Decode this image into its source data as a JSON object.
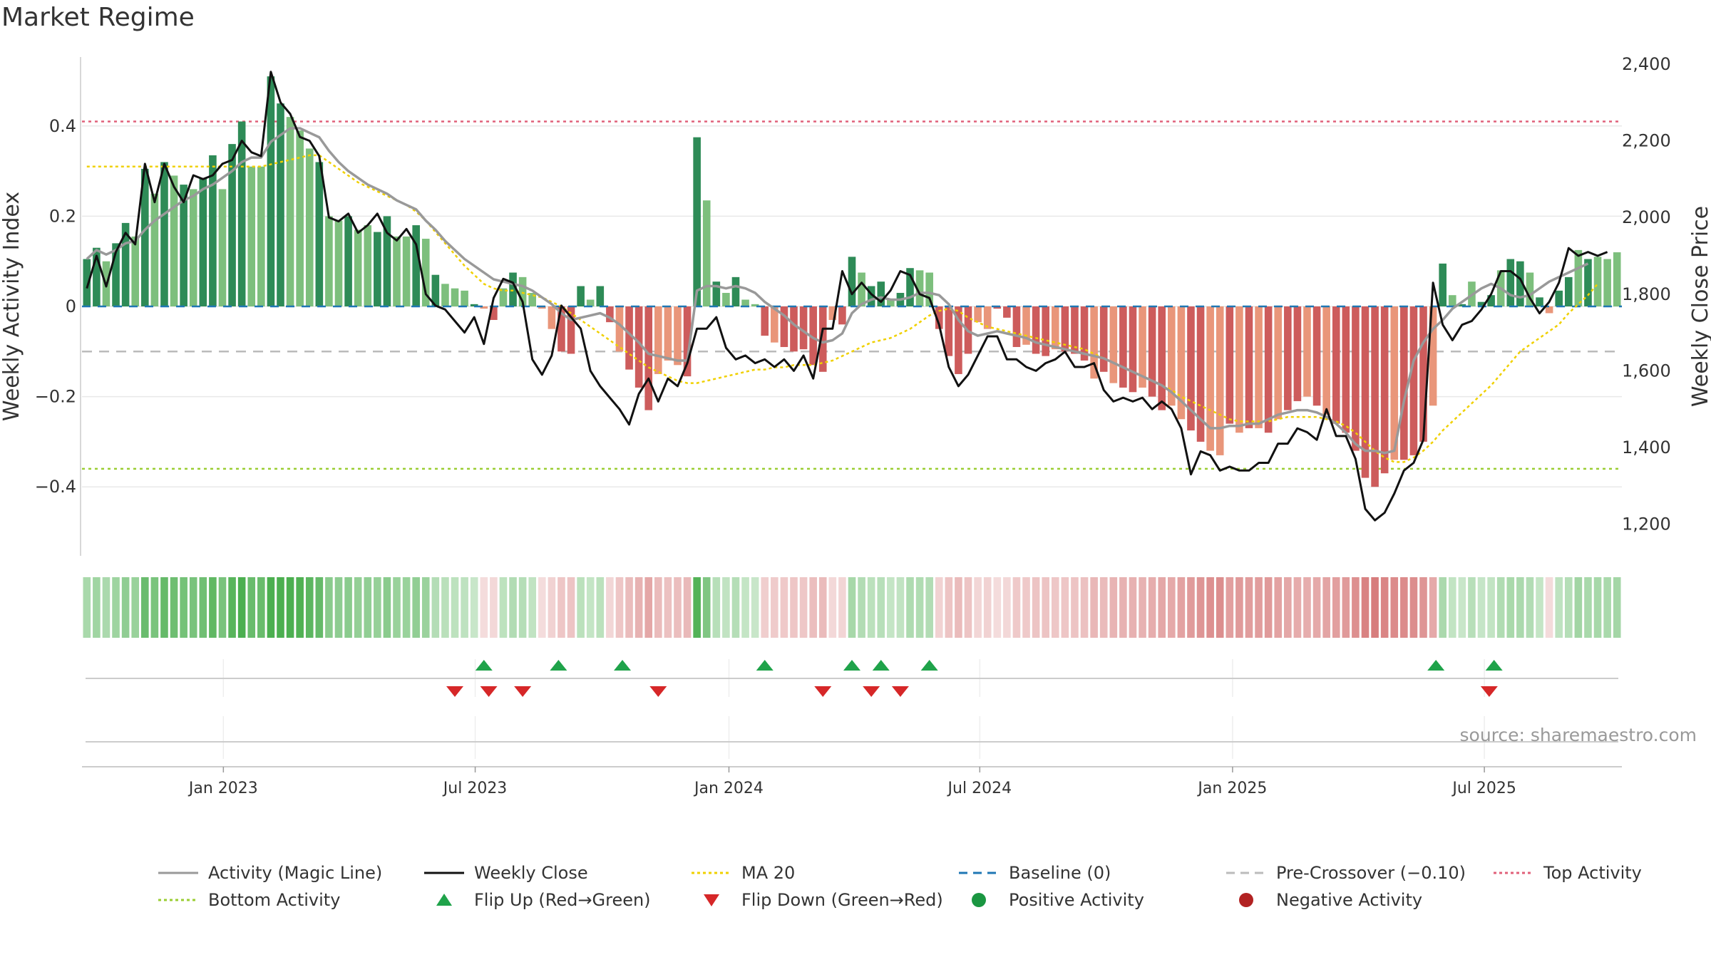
{
  "title": "Market Regime",
  "source": "source: sharemaestro.com",
  "colors": {
    "bar_pos_dark": "#2e8b57",
    "bar_pos_light": "#7dbf7d",
    "bar_neg_dark": "#cd5c5c",
    "bar_neg_light": "#e9967a",
    "magic_line": "#999999",
    "weekly_close": "#111111",
    "ma20": "#f0d000",
    "baseline": "#1f77b4",
    "precross": "#bbbbbb",
    "top_activity": "#e0607a",
    "bottom_activity": "#9acd32",
    "flip_up": "#1fa34a",
    "flip_down": "#d62728",
    "pos_dot": "#1a9641",
    "neg_dot": "#b22222",
    "grid": "#e8e8e8"
  },
  "chart_data": {
    "type": "bar",
    "title": "Market Regime",
    "ylabel": "Weekly Activity Index",
    "y2label": "Weekly Close Price",
    "ylim": [
      -0.55,
      0.55
    ],
    "y2lim": [
      1130,
      2400
    ],
    "yticks": [
      {
        "value": 0.4,
        "label": "0.4"
      },
      {
        "value": 0.2,
        "label": "0.2"
      },
      {
        "value": 0,
        "label": "0"
      },
      {
        "value": -0.2,
        "label": "−0.2"
      },
      {
        "value": -0.4,
        "label": "−0.4"
      }
    ],
    "y2ticks": [
      {
        "value": 2400,
        "label": "2,400"
      },
      {
        "value": 2200,
        "label": "2,200"
      },
      {
        "value": 2000,
        "label": "2,000"
      },
      {
        "value": 1800,
        "label": "1,800"
      },
      {
        "value": 1600,
        "label": "1,600"
      },
      {
        "value": 1400,
        "label": "1,400"
      },
      {
        "value": 1200,
        "label": "1,200"
      }
    ],
    "xticks": [
      "Jan 2023",
      "Jul 2023",
      "Jan 2024",
      "Jul 2024",
      "Jan 2025",
      "Jul 2025"
    ],
    "xtick_weeks": [
      14.6,
      40.6,
      66.8,
      92.7,
      118.8,
      144.8
    ],
    "top_activity": 0.41,
    "bottom_activity": -0.36,
    "baseline": 0,
    "pre_crossover": -0.1,
    "activity": [
      0.105,
      0.13,
      0.1,
      0.14,
      0.185,
      0.155,
      0.305,
      0.25,
      0.32,
      0.29,
      0.27,
      0.26,
      0.285,
      0.335,
      0.26,
      0.36,
      0.41,
      0.31,
      0.31,
      0.51,
      0.45,
      0.42,
      0.39,
      0.35,
      0.32,
      0.2,
      0.19,
      0.2,
      0.17,
      0.18,
      0.165,
      0.2,
      0.155,
      0.155,
      0.18,
      0.15,
      0.07,
      0.05,
      0.04,
      0.035,
      0.005,
      -0.005,
      -0.03,
      0.04,
      0.075,
      0.065,
      0.03,
      -0.005,
      -0.05,
      -0.1,
      -0.105,
      0.045,
      0.015,
      0.045,
      -0.035,
      -0.1,
      -0.14,
      -0.18,
      -0.23,
      -0.15,
      -0.12,
      -0.13,
      -0.155,
      0.375,
      0.235,
      0.055,
      0.03,
      0.065,
      0.015,
      0.005,
      -0.065,
      -0.08,
      -0.09,
      -0.1,
      -0.095,
      -0.13,
      -0.145,
      -0.03,
      -0.04,
      0.11,
      0.075,
      0.045,
      0.055,
      0.015,
      0.03,
      0.085,
      0.08,
      0.075,
      -0.05,
      -0.11,
      -0.15,
      -0.105,
      -0.035,
      -0.05,
      -0.005,
      -0.025,
      -0.09,
      -0.085,
      -0.105,
      -0.11,
      -0.095,
      -0.1,
      -0.105,
      -0.12,
      -0.16,
      -0.145,
      -0.17,
      -0.18,
      -0.19,
      -0.18,
      -0.2,
      -0.23,
      -0.22,
      -0.25,
      -0.275,
      -0.3,
      -0.32,
      -0.33,
      -0.26,
      -0.28,
      -0.27,
      -0.27,
      -0.28,
      -0.25,
      -0.23,
      -0.21,
      -0.2,
      -0.22,
      -0.24,
      -0.26,
      -0.28,
      -0.32,
      -0.38,
      -0.4,
      -0.37,
      -0.34,
      -0.34,
      -0.33,
      -0.3,
      -0.22,
      0.095,
      0.025,
      0.005,
      0.055,
      0.01,
      0.025,
      0.08,
      0.105,
      0.1,
      0.075,
      0.02,
      -0.015,
      0.035,
      0.065,
      0.125,
      0.105,
      0.11,
      0.105,
      0.12
    ],
    "bar_shade": [
      1,
      1,
      0,
      1,
      1,
      0,
      1,
      0,
      1,
      0,
      1,
      0,
      1,
      1,
      0,
      1,
      1,
      0,
      0,
      1,
      1,
      0,
      0,
      0,
      1,
      0,
      0,
      1,
      0,
      0,
      1,
      1,
      0,
      0,
      1,
      0,
      1,
      0,
      0,
      0,
      1,
      0,
      1,
      0,
      1,
      0,
      0,
      0,
      0,
      1,
      1,
      1,
      0,
      1,
      1,
      0,
      1,
      1,
      1,
      0,
      0,
      0,
      1,
      1,
      0,
      1,
      0,
      1,
      0,
      0,
      1,
      0,
      1,
      1,
      1,
      1,
      1,
      0,
      1,
      1,
      0,
      1,
      1,
      0,
      1,
      1,
      0,
      0,
      1,
      1,
      1,
      1,
      0,
      0,
      1,
      1,
      1,
      0,
      1,
      1,
      0,
      1,
      1,
      1,
      0,
      1,
      0,
      1,
      1,
      0,
      1,
      1,
      0,
      0,
      1,
      1,
      0,
      0,
      1,
      0,
      1,
      0,
      1,
      0,
      1,
      1,
      0,
      1,
      0,
      1,
      1,
      1,
      1,
      1,
      1,
      0,
      1,
      1,
      1,
      0,
      1,
      0,
      1,
      0,
      1,
      1,
      0,
      1,
      1,
      0,
      1,
      0,
      1,
      1,
      0,
      1,
      0
    ],
    "weekly_close": [
      1815,
      1900,
      1820,
      1910,
      1960,
      1930,
      2140,
      2040,
      2140,
      2080,
      2040,
      2110,
      2100,
      2110,
      2140,
      2150,
      2200,
      2170,
      2160,
      2380,
      2300,
      2270,
      2210,
      2200,
      2160,
      2000,
      1990,
      2010,
      1960,
      1980,
      2010,
      1960,
      1940,
      1970,
      1930,
      1800,
      1770,
      1760,
      1730,
      1700,
      1740,
      1670,
      1790,
      1840,
      1830,
      1780,
      1630,
      1590,
      1640,
      1770,
      1740,
      1710,
      1600,
      1560,
      1530,
      1500,
      1460,
      1540,
      1580,
      1520,
      1580,
      1560,
      1620,
      1710,
      1710,
      1740,
      1660,
      1630,
      1640,
      1620,
      1630,
      1610,
      1630,
      1600,
      1640,
      1580,
      1710,
      1710,
      1860,
      1800,
      1830,
      1800,
      1780,
      1810,
      1860,
      1850,
      1800,
      1790,
      1720,
      1610,
      1560,
      1590,
      1640,
      1690,
      1690,
      1630,
      1630,
      1610,
      1600,
      1620,
      1630,
      1650,
      1610,
      1610,
      1620,
      1550,
      1520,
      1530,
      1520,
      1530,
      1500,
      1520,
      1500,
      1450,
      1330,
      1390,
      1380,
      1340,
      1350,
      1340,
      1340,
      1360,
      1360,
      1410,
      1410,
      1450,
      1440,
      1420,
      1500,
      1430,
      1430,
      1370,
      1240,
      1210,
      1230,
      1280,
      1340,
      1360,
      1420,
      1830,
      1720,
      1680,
      1720,
      1730,
      1760,
      1800,
      1860,
      1860,
      1840,
      1790,
      1750,
      1780,
      1830,
      1920,
      1900,
      1910,
      1900,
      1910
    ],
    "magic_line": [
      0.105,
      0.125,
      0.115,
      0.125,
      0.14,
      0.145,
      0.17,
      0.19,
      0.205,
      0.22,
      0.235,
      0.245,
      0.26,
      0.27,
      0.285,
      0.3,
      0.32,
      0.33,
      0.33,
      0.365,
      0.38,
      0.395,
      0.395,
      0.385,
      0.375,
      0.345,
      0.32,
      0.3,
      0.285,
      0.27,
      0.26,
      0.25,
      0.235,
      0.225,
      0.215,
      0.19,
      0.17,
      0.145,
      0.125,
      0.105,
      0.09,
      0.075,
      0.06,
      0.055,
      0.05,
      0.045,
      0.035,
      0.02,
      0.005,
      -0.015,
      -0.03,
      -0.025,
      -0.02,
      -0.015,
      -0.025,
      -0.04,
      -0.06,
      -0.08,
      -0.105,
      -0.11,
      -0.115,
      -0.12,
      -0.12,
      0.035,
      0.045,
      0.045,
      0.04,
      0.045,
      0.04,
      0.03,
      0.01,
      -0.005,
      -0.02,
      -0.04,
      -0.055,
      -0.07,
      -0.08,
      -0.075,
      -0.06,
      -0.015,
      0.005,
      0.015,
      0.02,
      0.015,
      0.015,
      0.02,
      0.03,
      0.03,
      0.025,
      0.005,
      -0.03,
      -0.055,
      -0.065,
      -0.06,
      -0.055,
      -0.06,
      -0.065,
      -0.07,
      -0.08,
      -0.085,
      -0.09,
      -0.095,
      -0.1,
      -0.105,
      -0.11,
      -0.115,
      -0.125,
      -0.135,
      -0.145,
      -0.155,
      -0.165,
      -0.175,
      -0.19,
      -0.21,
      -0.23,
      -0.25,
      -0.27,
      -0.27,
      -0.265,
      -0.265,
      -0.26,
      -0.26,
      -0.25,
      -0.24,
      -0.235,
      -0.23,
      -0.23,
      -0.235,
      -0.245,
      -0.26,
      -0.28,
      -0.305,
      -0.32,
      -0.32,
      -0.325,
      -0.32,
      -0.21,
      -0.12,
      -0.08,
      -0.05,
      -0.03,
      -0.005,
      0.01,
      0.025,
      0.04,
      0.05,
      0.04,
      0.025,
      0.02,
      0.025,
      0.04,
      0.055,
      0.065,
      0.075,
      0.085,
      0.095
    ],
    "ma20": [
      0.31,
      0.31,
      0.31,
      0.31,
      0.31,
      0.31,
      0.31,
      0.31,
      0.31,
      0.31,
      0.31,
      0.31,
      0.31,
      0.31,
      0.31,
      0.31,
      0.31,
      0.31,
      0.31,
      0.315,
      0.32,
      0.325,
      0.33,
      0.335,
      0.335,
      0.32,
      0.305,
      0.29,
      0.275,
      0.265,
      0.255,
      0.245,
      0.235,
      0.225,
      0.21,
      0.19,
      0.165,
      0.14,
      0.115,
      0.09,
      0.07,
      0.05,
      0.04,
      0.035,
      0.035,
      0.03,
      0.025,
      0.02,
      0.01,
      0,
      -0.015,
      -0.03,
      -0.045,
      -0.06,
      -0.075,
      -0.09,
      -0.105,
      -0.12,
      -0.135,
      -0.145,
      -0.155,
      -0.165,
      -0.17,
      -0.17,
      -0.165,
      -0.16,
      -0.155,
      -0.15,
      -0.145,
      -0.14,
      -0.14,
      -0.135,
      -0.135,
      -0.13,
      -0.13,
      -0.13,
      -0.125,
      -0.12,
      -0.11,
      -0.1,
      -0.09,
      -0.08,
      -0.075,
      -0.07,
      -0.06,
      -0.05,
      -0.035,
      -0.02,
      -0.01,
      -0.005,
      -0.01,
      -0.025,
      -0.035,
      -0.045,
      -0.05,
      -0.055,
      -0.06,
      -0.065,
      -0.07,
      -0.075,
      -0.08,
      -0.085,
      -0.09,
      -0.095,
      -0.105,
      -0.115,
      -0.125,
      -0.135,
      -0.145,
      -0.155,
      -0.165,
      -0.175,
      -0.185,
      -0.2,
      -0.21,
      -0.22,
      -0.23,
      -0.24,
      -0.25,
      -0.255,
      -0.255,
      -0.255,
      -0.255,
      -0.25,
      -0.245,
      -0.245,
      -0.245,
      -0.245,
      -0.25,
      -0.255,
      -0.265,
      -0.28,
      -0.3,
      -0.32,
      -0.335,
      -0.345,
      -0.345,
      -0.335,
      -0.32,
      -0.3,
      -0.275,
      -0.255,
      -0.235,
      -0.215,
      -0.195,
      -0.175,
      -0.15,
      -0.125,
      -0.1,
      -0.085,
      -0.07,
      -0.055,
      -0.04,
      -0.015,
      0.005,
      0.025,
      0.05
    ],
    "flip_up_weeks": [
      41.5,
      49.2,
      55.8,
      70.5,
      79.5,
      82.5,
      87.5,
      139.8,
      145.8
    ],
    "flip_down_weeks": [
      38.5,
      42.0,
      45.5,
      59.5,
      76.5,
      81.5,
      84.5,
      145.3
    ],
    "legend": [
      {
        "label": "Activity (Magic Line)",
        "kind": "line",
        "color": "#999999",
        "dash": "none"
      },
      {
        "label": "Weekly Close",
        "kind": "line",
        "color": "#111111",
        "dash": "none"
      },
      {
        "label": "MA 20",
        "kind": "line",
        "color": "#f0d000",
        "dash": "4 4"
      },
      {
        "label": "Baseline (0)",
        "kind": "line",
        "color": "#1f77b4",
        "dash": "12 8"
      },
      {
        "label": "Pre-Crossover (−0.10)",
        "kind": "line",
        "color": "#bbbbbb",
        "dash": "12 8"
      },
      {
        "label": "Top Activity",
        "kind": "line",
        "color": "#e0607a",
        "dash": "4 4"
      },
      {
        "label": "Bottom Activity",
        "kind": "line",
        "color": "#9acd32",
        "dash": "4 4"
      },
      {
        "label": "Flip Up (Red→Green)",
        "kind": "tri-up",
        "color": "#1fa34a"
      },
      {
        "label": "Flip Down (Green→Red)",
        "kind": "tri-down",
        "color": "#d62728"
      },
      {
        "label": "Positive Activity",
        "kind": "dot",
        "color": "#1a9641"
      },
      {
        "label": "Negative Activity",
        "kind": "dot",
        "color": "#b22222"
      }
    ],
    "grid": true,
    "legend_position": "bottom"
  }
}
